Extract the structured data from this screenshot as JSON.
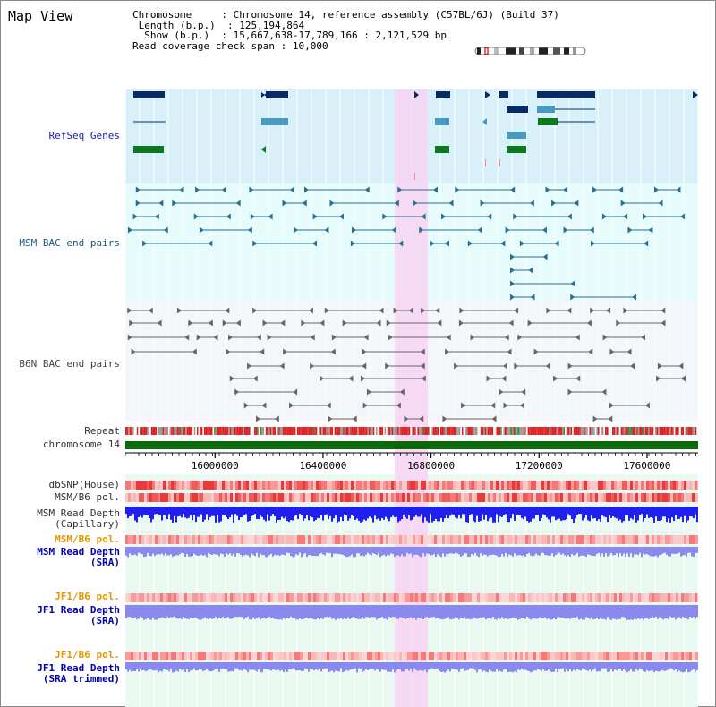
{
  "header": {
    "title": "Map View",
    "chromosome_label": "Chromosome",
    "chromosome_value": "Chromosome 14, reference assembly (C57BL/6J) (Build 37)",
    "length_label": "Length (b.p.)",
    "length_value": "125,194,864",
    "show_label": "Show (b.p.)",
    "show_value": "15,667,638-17,789,166 : 2,121,529 bp",
    "coverage_label": "Read coverage check span",
    "coverage_value": "10,000"
  },
  "tracks": {
    "refseq": "RefSeq Genes",
    "msm_bac": "MSM BAC end pairs",
    "b6n_bac": "B6N BAC end pairs",
    "repeat": "Repeat",
    "chromosome": "chromosome 14",
    "dbsnp": "dbSNP(House)",
    "msm_b6_pol": "MSM/B6 pol.",
    "msm_depth_cap_1": "MSM Read Depth",
    "msm_depth_cap_2": "(Capillary)",
    "msm_b6_pol_sra": "MSM/B6 pol.",
    "msm_depth_sra_1": "MSM Read Depth",
    "msm_depth_sra_2": "(SRA)",
    "jf1_b6_pol": "JF1/B6 pol.",
    "jf1_depth_1": "JF1 Read Depth",
    "jf1_depth_2": "(SRA)",
    "jf1_b6_pol_trim": "JF1/B6 pol.",
    "jf1_depth_trim_1": "JF1 Read Depth",
    "jf1_depth_trim_2": "(SRA trimmed)"
  },
  "axis": {
    "ticks": [
      "16000000",
      "16400000",
      "16800000",
      "17200000",
      "17600000"
    ],
    "tick_values": [
      16000000,
      16400000,
      16800000,
      17200000,
      17600000
    ],
    "range": [
      15667638,
      17789166
    ]
  },
  "colors": {
    "highlight": "#f7d3f2",
    "refseq_bg": "#d8f0fa",
    "msm_bg": "#e6fbfb",
    "b6n_bg": "#f3f6fa",
    "gene_navy": "#0a2a66",
    "gene_teal": "#4a9ac0",
    "gene_green": "#0a7a1a",
    "chromosome_bar": "#0a6a0a",
    "depth_cap": "#2020ee",
    "depth_sra": "#8a8aee"
  }
}
